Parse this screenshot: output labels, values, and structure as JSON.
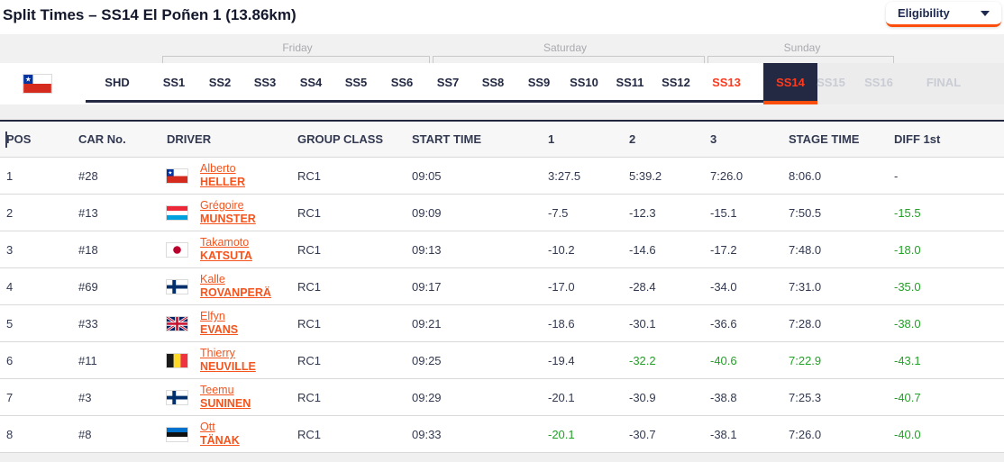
{
  "page": {
    "title": "Split Times – SS14 El Poñen 1 (13.86km)"
  },
  "eligibility": {
    "label": "Eligibility"
  },
  "rally": {
    "country": "chile"
  },
  "days": [
    {
      "label": "Friday"
    },
    {
      "label": "Saturday"
    },
    {
      "label": "Sunday"
    }
  ],
  "tabs": [
    {
      "label": "SHD",
      "state": "default"
    },
    {
      "label": "SS1",
      "state": "default"
    },
    {
      "label": "SS2",
      "state": "default"
    },
    {
      "label": "SS3",
      "state": "default"
    },
    {
      "label": "SS4",
      "state": "default"
    },
    {
      "label": "SS5",
      "state": "default"
    },
    {
      "label": "SS6",
      "state": "default"
    },
    {
      "label": "SS7",
      "state": "default"
    },
    {
      "label": "SS8",
      "state": "default"
    },
    {
      "label": "SS9",
      "state": "default"
    },
    {
      "label": "SS10",
      "state": "default"
    },
    {
      "label": "SS11",
      "state": "default"
    },
    {
      "label": "SS12",
      "state": "default"
    },
    {
      "label": "SS13",
      "state": "orange"
    },
    {
      "label": "SS14",
      "state": "active"
    },
    {
      "label": "SS15",
      "state": "disabled"
    },
    {
      "label": "SS16",
      "state": "disabled"
    },
    {
      "label": "FINAL",
      "state": "disabled"
    }
  ],
  "table": {
    "headers": {
      "pos": "POS",
      "car": "CAR No.",
      "driver": "DRIVER",
      "group": "GROUP CLASS",
      "start": "START TIME",
      "s1": "1",
      "s2": "2",
      "s3": "3",
      "stage": "STAGE TIME",
      "diff": "DIFF 1st"
    },
    "rows": [
      {
        "pos": "1",
        "car": "#28",
        "country": "chile",
        "first": "Alberto",
        "last": "HELLER",
        "group": "RC1",
        "start": "09:05",
        "s1": "3:27.5",
        "s2": "5:39.2",
        "s3": "7:26.0",
        "stage": "8:06.0",
        "diff": "-",
        "s1c": "",
        "s2c": "",
        "s3c": "",
        "stagec": "",
        "diffc": ""
      },
      {
        "pos": "2",
        "car": "#13",
        "country": "luxembourg",
        "first": "Grégoire",
        "last": "MUNSTER",
        "group": "RC1",
        "start": "09:09",
        "s1": "-7.5",
        "s2": "-12.3",
        "s3": "-15.1",
        "stage": "7:50.5",
        "diff": "-15.5",
        "s1c": "",
        "s2c": "",
        "s3c": "",
        "stagec": "",
        "diffc": "green"
      },
      {
        "pos": "3",
        "car": "#18",
        "country": "japan",
        "first": "Takamoto",
        "last": "KATSUTA",
        "group": "RC1",
        "start": "09:13",
        "s1": "-10.2",
        "s2": "-14.6",
        "s3": "-17.2",
        "stage": "7:48.0",
        "diff": "-18.0",
        "s1c": "",
        "s2c": "",
        "s3c": "",
        "stagec": "",
        "diffc": "green"
      },
      {
        "pos": "4",
        "car": "#69",
        "country": "finland",
        "first": "Kalle",
        "last": "ROVANPERÄ",
        "group": "RC1",
        "start": "09:17",
        "s1": "-17.0",
        "s2": "-28.4",
        "s3": "-34.0",
        "stage": "7:31.0",
        "diff": "-35.0",
        "s1c": "",
        "s2c": "",
        "s3c": "",
        "stagec": "",
        "diffc": "green"
      },
      {
        "pos": "5",
        "car": "#33",
        "country": "uk",
        "first": "Elfyn",
        "last": "EVANS",
        "group": "RC1",
        "start": "09:21",
        "s1": "-18.6",
        "s2": "-30.1",
        "s3": "-36.6",
        "stage": "7:28.0",
        "diff": "-38.0",
        "s1c": "",
        "s2c": "",
        "s3c": "",
        "stagec": "",
        "diffc": "green"
      },
      {
        "pos": "6",
        "car": "#11",
        "country": "belgium",
        "first": "Thierry",
        "last": "NEUVILLE",
        "group": "RC1",
        "start": "09:25",
        "s1": "-19.4",
        "s2": "-32.2",
        "s3": "-40.6",
        "stage": "7:22.9",
        "diff": "-43.1",
        "s1c": "",
        "s2c": "green",
        "s3c": "green",
        "stagec": "green",
        "diffc": "green"
      },
      {
        "pos": "7",
        "car": "#3",
        "country": "finland",
        "first": "Teemu",
        "last": "SUNINEN",
        "group": "RC1",
        "start": "09:29",
        "s1": "-20.1",
        "s2": "-30.9",
        "s3": "-38.8",
        "stage": "7:25.3",
        "diff": "-40.7",
        "s1c": "",
        "s2c": "",
        "s3c": "",
        "stagec": "",
        "diffc": "green"
      },
      {
        "pos": "8",
        "car": "#8",
        "country": "estonia",
        "first": "Ott",
        "last": "TÄNAK",
        "group": "RC1",
        "start": "09:33",
        "s1": "-20.1",
        "s2": "-30.7",
        "s3": "-38.1",
        "stage": "7:26.0",
        "diff": "-40.0",
        "s1c": "green",
        "s2c": "",
        "s3c": "",
        "stagec": "",
        "diffc": "green"
      }
    ]
  },
  "colors": {
    "accent_orange": "#fb4d0c",
    "tab_orange": "#fe3a1d",
    "link_orange": "#f4541d",
    "navy": "#232942",
    "green": "#23a127",
    "disabled_gray": "#caccd5"
  }
}
